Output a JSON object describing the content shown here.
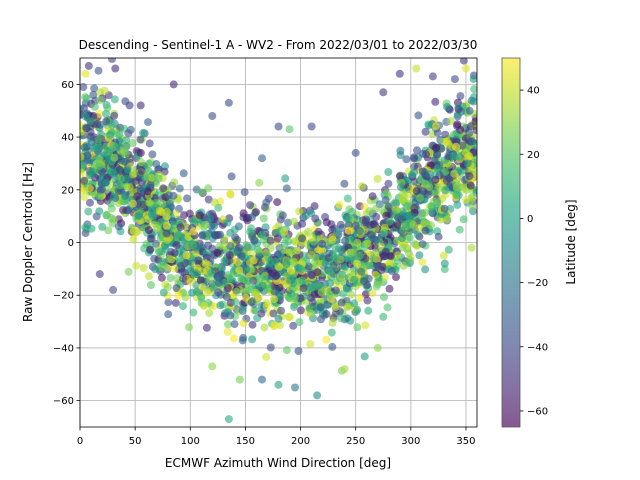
{
  "chart_data": {
    "type": "scatter",
    "title": "Descending - Sentinel-1 A - WV2 - From 2022/03/01 to 2022/03/30",
    "xlabel": "ECMWF Azimuth Wind Direction [deg]",
    "ylabel": "Raw Doppler Centroid [Hz]",
    "xlim": [
      0,
      360
    ],
    "ylim": [
      -70,
      70
    ],
    "xticks": [
      0,
      50,
      100,
      150,
      200,
      250,
      300,
      350
    ],
    "yticks": [
      -60,
      -40,
      -20,
      0,
      20,
      40,
      60
    ],
    "grid": true,
    "colormap": "viridis",
    "point_alpha": 0.6,
    "colorbar": {
      "label": "Latitude [deg]",
      "range": [
        -65,
        50
      ],
      "ticks": [
        -60,
        -40,
        -20,
        0,
        20,
        40
      ]
    },
    "points_summary": {
      "approx_count": 2600,
      "trend": "V-shaped: Doppler near +25 to +35 Hz at 0 and 360 deg, minimum near -20 Hz around 180 deg",
      "points": [
        {
          "x": 5,
          "y": 64,
          "lat": 45
        },
        {
          "x": 8,
          "y": 67,
          "lat": -48
        },
        {
          "x": 3,
          "y": 59,
          "lat": -40
        },
        {
          "x": 32,
          "y": 66,
          "lat": -50
        },
        {
          "x": 45,
          "y": 52,
          "lat": -45
        },
        {
          "x": 55,
          "y": 52,
          "lat": -50
        },
        {
          "x": 85,
          "y": 60,
          "lat": -52
        },
        {
          "x": 120,
          "y": 48,
          "lat": -35
        },
        {
          "x": 135,
          "y": 53,
          "lat": -38
        },
        {
          "x": 165,
          "y": 32,
          "lat": -30
        },
        {
          "x": 180,
          "y": 44,
          "lat": -40
        },
        {
          "x": 190,
          "y": 43,
          "lat": 20
        },
        {
          "x": 210,
          "y": 44,
          "lat": -40
        },
        {
          "x": 250,
          "y": 34,
          "lat": -35
        },
        {
          "x": 275,
          "y": 57,
          "lat": -45
        },
        {
          "x": 290,
          "y": 64,
          "lat": -48
        },
        {
          "x": 305,
          "y": 66,
          "lat": 40
        },
        {
          "x": 320,
          "y": 63,
          "lat": -44
        },
        {
          "x": 340,
          "y": 62,
          "lat": -40
        },
        {
          "x": 348,
          "y": 69,
          "lat": -45
        },
        {
          "x": 350,
          "y": 66,
          "lat": 45
        },
        {
          "x": 135,
          "y": -67,
          "lat": 5
        },
        {
          "x": 215,
          "y": -58,
          "lat": -10
        },
        {
          "x": 195,
          "y": -55,
          "lat": -20
        },
        {
          "x": 180,
          "y": -54,
          "lat": 0
        },
        {
          "x": 145,
          "y": -52,
          "lat": 25
        },
        {
          "x": 165,
          "y": -52,
          "lat": -25
        },
        {
          "x": 30,
          "y": -18,
          "lat": -40
        },
        {
          "x": 18,
          "y": -12,
          "lat": -45
        },
        {
          "x": 270,
          "y": -40,
          "lat": 30
        },
        {
          "x": 240,
          "y": -48,
          "lat": 35
        },
        {
          "x": 120,
          "y": -47,
          "lat": 30
        },
        {
          "x": 355,
          "y": -2,
          "lat": 35
        },
        {
          "x": 330,
          "y": -5,
          "lat": 40
        }
      ]
    }
  }
}
